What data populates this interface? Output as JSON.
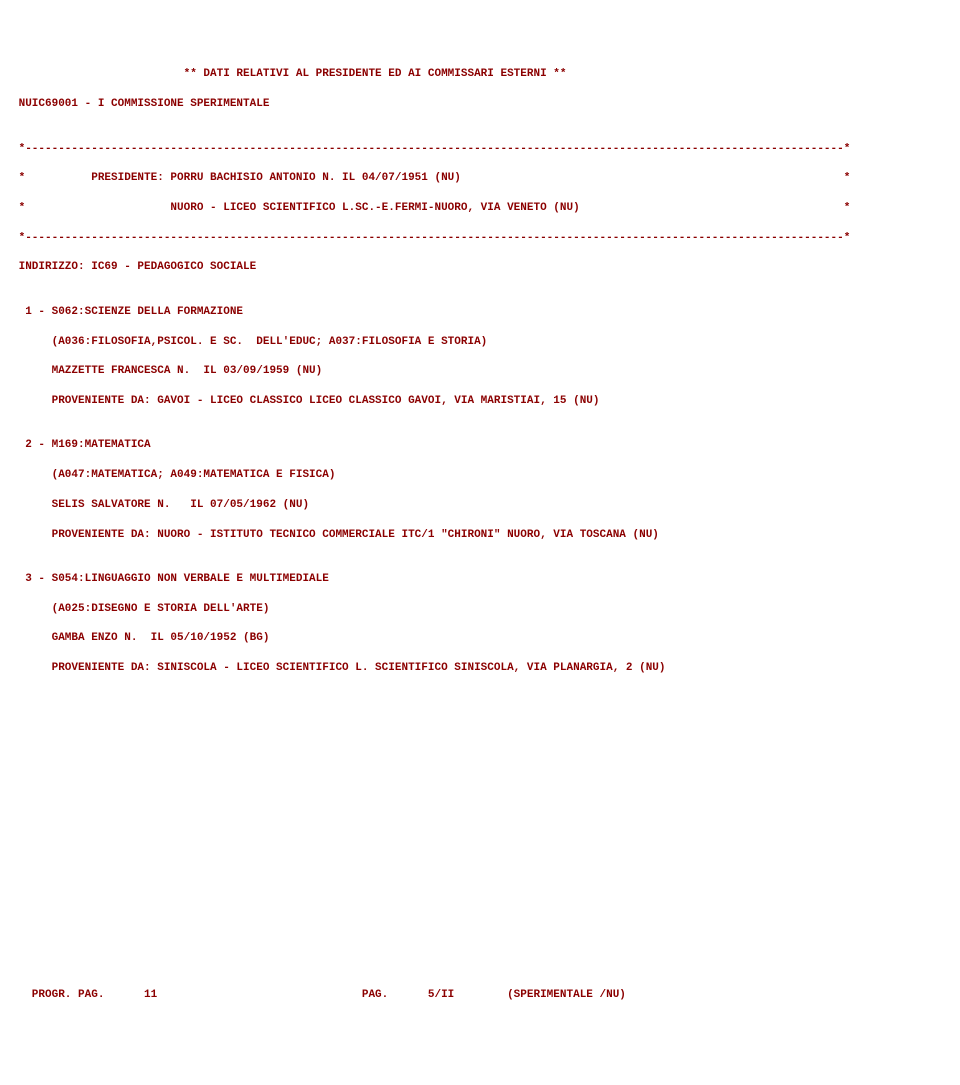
{
  "header_title": "                          ** DATI RELATIVI AL PRESIDENTE ED AI COMMISSARI ESTERNI **",
  "commission_code": " NUIC69001 - I COMMISSIONE SPERIMENTALE",
  "blank": "",
  "border": " *----------------------------------------------------------------------------------------------------------------------------*",
  "president1": " *          PRESIDENTE: PORRU BACHISIO ANTONIO N. IL 04/07/1951 (NU)                                                          *",
  "president2": " *                      NUORO - LICEO SCIENTIFICO L.SC.-E.FERMI-NUORO, VIA VENETO (NU)                                        *",
  "indirizzo": " INDIRIZZO: IC69 - PEDAGOGICO SOCIALE",
  "subj1_header": "  1 - S062:SCIENZE DELLA FORMAZIONE",
  "subj1_detail": "      (A036:FILOSOFIA,PSICOL. E SC.  DELL'EDUC; A037:FILOSOFIA E STORIA)",
  "subj1_name": "      MAZZETTE FRANCESCA N.  IL 03/09/1959 (NU)",
  "subj1_prov": "      PROVENIENTE DA: GAVOI - LICEO CLASSICO LICEO CLASSICO GAVOI, VIA MARISTIAI, 15 (NU)",
  "subj2_header": "  2 - M169:MATEMATICA",
  "subj2_detail": "      (A047:MATEMATICA; A049:MATEMATICA E FISICA)",
  "subj2_name": "      SELIS SALVATORE N.   IL 07/05/1962 (NU)",
  "subj2_prov": "      PROVENIENTE DA: NUORO - ISTITUTO TECNICO COMMERCIALE ITC/1 \"CHIRONI\" NUORO, VIA TOSCANA (NU)",
  "subj3_header": "  3 - S054:LINGUAGGIO NON VERBALE E MULTIMEDIALE",
  "subj3_detail": "      (A025:DISEGNO E STORIA DELL'ARTE)",
  "subj3_name": "      GAMBA ENZO N.  IL 05/10/1952 (BG)",
  "subj3_prov": "      PROVENIENTE DA: SINISCOLA - LICEO SCIENTIFICO L. SCIENTIFICO SINISCOLA, VIA PLANARGIA, 2 (NU)",
  "footer": "   PROGR. PAG.      11                               PAG.      5/II        (SPERIMENTALE /NU)"
}
